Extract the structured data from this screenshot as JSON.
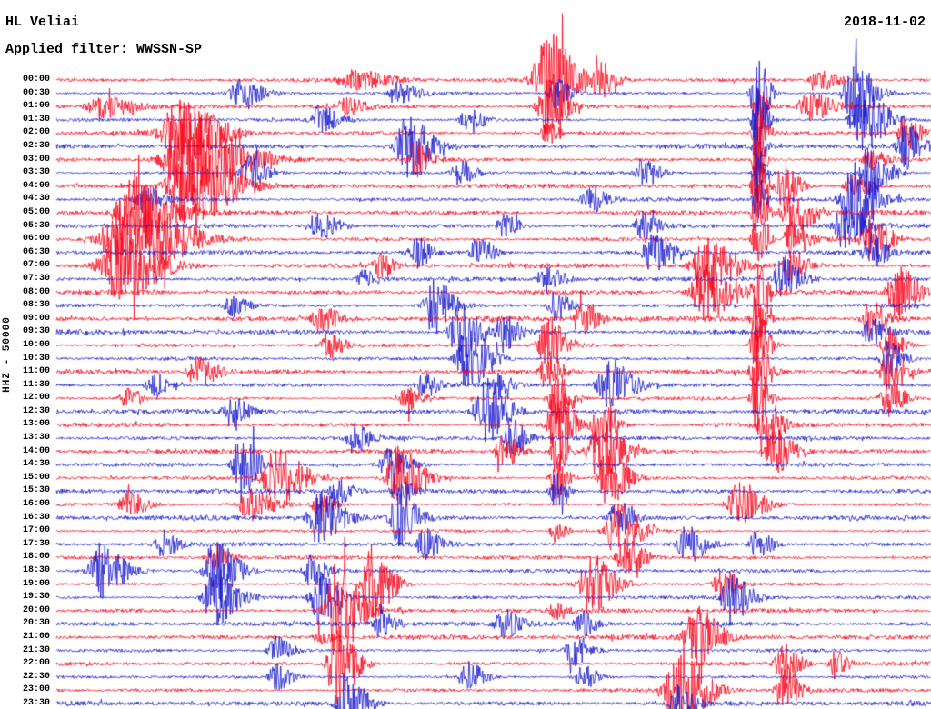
{
  "header": {
    "station": "HL Veliai",
    "date": "2018-11-02",
    "filter_label": "Applied filter: WWSSN-SP"
  },
  "axis": {
    "left_label": "HHZ - 50000"
  },
  "chart_data": {
    "type": "line",
    "title": "Helicorder seismogram, station HL Veliai, 2018-11-02",
    "station": "HL Veliai",
    "channel": "HHZ",
    "gain": 50000,
    "date": "2018-11-02",
    "filter": "WWSSN-SP",
    "minutes_per_row": 30,
    "legend": "none",
    "grid": "off",
    "trace_colors": {
      "red": "#f80016",
      "blue": "#1414cd"
    },
    "burst_format": "[position_fraction_of_row, peak_amplitude_px, envelope_width_px]",
    "rows": [
      {
        "label": "00:00",
        "color": "red",
        "bursts": [
          [
            0.34,
            10,
            18
          ],
          [
            0.56,
            55,
            14
          ],
          [
            0.62,
            20,
            8
          ],
          [
            0.87,
            12,
            10
          ]
        ]
      },
      {
        "label": "00:30",
        "color": "blue",
        "bursts": [
          [
            0.21,
            14,
            12
          ],
          [
            0.39,
            12,
            10
          ],
          [
            0.57,
            18,
            8
          ],
          [
            0.8,
            50,
            6
          ],
          [
            0.91,
            42,
            10
          ]
        ]
      },
      {
        "label": "01:00",
        "color": "red",
        "bursts": [
          [
            0.05,
            12,
            14
          ],
          [
            0.33,
            8,
            10
          ],
          [
            0.56,
            30,
            10
          ],
          [
            0.8,
            40,
            4
          ],
          [
            0.86,
            14,
            12
          ]
        ]
      },
      {
        "label": "01:30",
        "color": "blue",
        "bursts": [
          [
            0.3,
            16,
            10
          ],
          [
            0.47,
            14,
            8
          ],
          [
            0.8,
            48,
            5
          ],
          [
            0.92,
            38,
            12
          ]
        ]
      },
      {
        "label": "02:00",
        "color": "red",
        "bursts": [
          [
            0.14,
            35,
            20
          ],
          [
            0.56,
            12,
            6
          ],
          [
            0.8,
            44,
            5
          ],
          [
            0.97,
            18,
            8
          ]
        ]
      },
      {
        "label": "02:30",
        "color": "blue",
        "bursts": [
          [
            0.4,
            34,
            12
          ],
          [
            0.8,
            40,
            4
          ],
          [
            0.97,
            24,
            8
          ]
        ]
      },
      {
        "label": "03:00",
        "color": "red",
        "bursts": [
          [
            0.15,
            52,
            25
          ],
          [
            0.41,
            20,
            8
          ],
          [
            0.8,
            40,
            4
          ],
          [
            0.93,
            12,
            8
          ]
        ]
      },
      {
        "label": "03:30",
        "color": "blue",
        "bursts": [
          [
            0.22,
            18,
            10
          ],
          [
            0.46,
            14,
            8
          ],
          [
            0.67,
            16,
            8
          ],
          [
            0.8,
            34,
            4
          ],
          [
            0.93,
            30,
            10
          ]
        ]
      },
      {
        "label": "04:00",
        "color": "red",
        "bursts": [
          [
            0.15,
            44,
            22
          ],
          [
            0.8,
            40,
            5
          ],
          [
            0.83,
            24,
            8
          ],
          [
            0.91,
            15,
            8
          ]
        ]
      },
      {
        "label": "04:30",
        "color": "blue",
        "bursts": [
          [
            0.1,
            14,
            10
          ],
          [
            0.61,
            16,
            8
          ],
          [
            0.8,
            30,
            4
          ],
          [
            0.91,
            44,
            12
          ]
        ]
      },
      {
        "label": "05:00",
        "color": "red",
        "bursts": [
          [
            0.09,
            40,
            18
          ],
          [
            0.8,
            34,
            5
          ],
          [
            0.84,
            30,
            10
          ]
        ]
      },
      {
        "label": "05:30",
        "color": "blue",
        "bursts": [
          [
            0.3,
            14,
            10
          ],
          [
            0.51,
            12,
            8
          ],
          [
            0.67,
            14,
            8
          ],
          [
            0.9,
            24,
            10
          ]
        ]
      },
      {
        "label": "06:00",
        "color": "red",
        "bursts": [
          [
            0.08,
            52,
            25
          ],
          [
            0.8,
            30,
            5
          ],
          [
            0.84,
            20,
            8
          ],
          [
            0.93,
            24,
            10
          ]
        ]
      },
      {
        "label": "06:30",
        "color": "blue",
        "bursts": [
          [
            0.41,
            16,
            8
          ],
          [
            0.48,
            18,
            8
          ],
          [
            0.68,
            20,
            10
          ],
          [
            0.93,
            20,
            8
          ]
        ]
      },
      {
        "label": "07:00",
        "color": "red",
        "bursts": [
          [
            0.07,
            40,
            20
          ],
          [
            0.37,
            14,
            8
          ],
          [
            0.74,
            34,
            14
          ],
          [
            0.84,
            20,
            8
          ]
        ]
      },
      {
        "label": "07:30",
        "color": "blue",
        "bursts": [
          [
            0.35,
            10,
            8
          ],
          [
            0.56,
            16,
            8
          ],
          [
            0.83,
            24,
            10
          ]
        ]
      },
      {
        "label": "08:00",
        "color": "red",
        "bursts": [
          [
            0.74,
            30,
            14
          ],
          [
            0.8,
            30,
            5
          ],
          [
            0.96,
            30,
            10
          ]
        ]
      },
      {
        "label": "08:30",
        "color": "blue",
        "bursts": [
          [
            0.2,
            10,
            8
          ],
          [
            0.43,
            30,
            10
          ],
          [
            0.57,
            16,
            8
          ]
        ]
      },
      {
        "label": "09:00",
        "color": "red",
        "bursts": [
          [
            0.3,
            14,
            10
          ],
          [
            0.6,
            18,
            8
          ],
          [
            0.8,
            34,
            5
          ],
          [
            0.93,
            20,
            8
          ]
        ]
      },
      {
        "label": "09:30",
        "color": "blue",
        "bursts": [
          [
            0.46,
            34,
            10
          ],
          [
            0.51,
            20,
            8
          ],
          [
            0.93,
            14,
            8
          ]
        ]
      },
      {
        "label": "10:00",
        "color": "red",
        "bursts": [
          [
            0.31,
            14,
            8
          ],
          [
            0.56,
            30,
            10
          ],
          [
            0.8,
            44,
            6
          ],
          [
            0.95,
            18,
            8
          ]
        ]
      },
      {
        "label": "10:30",
        "color": "blue",
        "bursts": [
          [
            0.47,
            34,
            12
          ],
          [
            0.95,
            20,
            8
          ]
        ]
      },
      {
        "label": "11:00",
        "color": "red",
        "bursts": [
          [
            0.16,
            16,
            10
          ],
          [
            0.56,
            20,
            8
          ],
          [
            0.8,
            44,
            6
          ],
          [
            0.95,
            18,
            8
          ]
        ]
      },
      {
        "label": "11:30",
        "color": "blue",
        "bursts": [
          [
            0.11,
            14,
            8
          ],
          [
            0.42,
            12,
            8
          ],
          [
            0.5,
            16,
            8
          ],
          [
            0.63,
            30,
            12
          ]
        ]
      },
      {
        "label": "12:00",
        "color": "red",
        "bursts": [
          [
            0.08,
            12,
            8
          ],
          [
            0.4,
            14,
            8
          ],
          [
            0.57,
            34,
            8
          ],
          [
            0.8,
            40,
            6
          ],
          [
            0.95,
            20,
            8
          ]
        ]
      },
      {
        "label": "12:30",
        "color": "blue",
        "bursts": [
          [
            0.2,
            16,
            8
          ],
          [
            0.49,
            34,
            12
          ]
        ]
      },
      {
        "label": "13:00",
        "color": "red",
        "bursts": [
          [
            0.57,
            48,
            8
          ],
          [
            0.62,
            24,
            8
          ],
          [
            0.81,
            30,
            8
          ]
        ]
      },
      {
        "label": "13:30",
        "color": "blue",
        "bursts": [
          [
            0.34,
            16,
            8
          ],
          [
            0.52,
            20,
            8
          ]
        ]
      },
      {
        "label": "14:00",
        "color": "red",
        "bursts": [
          [
            0.51,
            20,
            8
          ],
          [
            0.57,
            30,
            6
          ],
          [
            0.62,
            34,
            12
          ],
          [
            0.82,
            24,
            10
          ]
        ]
      },
      {
        "label": "14:30",
        "color": "blue",
        "bursts": [
          [
            0.21,
            44,
            8
          ],
          [
            0.38,
            18,
            10
          ]
        ]
      },
      {
        "label": "15:00",
        "color": "red",
        "bursts": [
          [
            0.25,
            34,
            14
          ],
          [
            0.39,
            34,
            12
          ],
          [
            0.57,
            24,
            6
          ],
          [
            0.63,
            30,
            10
          ]
        ]
      },
      {
        "label": "15:30",
        "color": "blue",
        "bursts": [
          [
            0.32,
            16,
            8
          ],
          [
            0.39,
            14,
            8
          ],
          [
            0.57,
            20,
            6
          ]
        ]
      },
      {
        "label": "16:00",
        "color": "red",
        "bursts": [
          [
            0.08,
            14,
            10
          ],
          [
            0.22,
            18,
            12
          ],
          [
            0.3,
            12,
            8
          ],
          [
            0.78,
            24,
            12
          ]
        ]
      },
      {
        "label": "16:30",
        "color": "blue",
        "bursts": [
          [
            0.3,
            30,
            12
          ],
          [
            0.39,
            30,
            10
          ],
          [
            0.64,
            18,
            8
          ]
        ]
      },
      {
        "label": "17:00",
        "color": "red",
        "bursts": [
          [
            0.57,
            12,
            6
          ],
          [
            0.64,
            30,
            12
          ]
        ]
      },
      {
        "label": "17:30",
        "color": "blue",
        "bursts": [
          [
            0.12,
            14,
            8
          ],
          [
            0.42,
            16,
            8
          ],
          [
            0.72,
            20,
            10
          ],
          [
            0.8,
            16,
            8
          ]
        ]
      },
      {
        "label": "18:00",
        "color": "red",
        "bursts": [
          [
            0.18,
            14,
            8
          ],
          [
            0.65,
            20,
            10
          ]
        ]
      },
      {
        "label": "18:30",
        "color": "blue",
        "bursts": [
          [
            0.05,
            30,
            12
          ],
          [
            0.18,
            34,
            12
          ],
          [
            0.29,
            16,
            8
          ]
        ]
      },
      {
        "label": "19:00",
        "color": "red",
        "bursts": [
          [
            0.36,
            44,
            10
          ],
          [
            0.61,
            34,
            12
          ],
          [
            0.76,
            18,
            8
          ]
        ]
      },
      {
        "label": "19:30",
        "color": "blue",
        "bursts": [
          [
            0.18,
            34,
            12
          ],
          [
            0.3,
            30,
            10
          ],
          [
            0.77,
            30,
            10
          ]
        ]
      },
      {
        "label": "20:00",
        "color": "red",
        "bursts": [
          [
            0.32,
            52,
            12
          ],
          [
            0.57,
            10,
            6
          ]
        ]
      },
      {
        "label": "20:30",
        "color": "blue",
        "bursts": [
          [
            0.37,
            14,
            8
          ],
          [
            0.51,
            16,
            8
          ],
          [
            0.6,
            14,
            8
          ]
        ]
      },
      {
        "label": "21:00",
        "color": "red",
        "bursts": [
          [
            0.3,
            10,
            6
          ],
          [
            0.73,
            34,
            12
          ]
        ]
      },
      {
        "label": "21:30",
        "color": "blue",
        "bursts": [
          [
            0.25,
            16,
            8
          ],
          [
            0.59,
            18,
            8
          ]
        ]
      },
      {
        "label": "22:00",
        "color": "red",
        "bursts": [
          [
            0.32,
            44,
            10
          ],
          [
            0.83,
            24,
            8
          ],
          [
            0.89,
            15,
            6
          ]
        ]
      },
      {
        "label": "22:30",
        "color": "blue",
        "bursts": [
          [
            0.25,
            14,
            8
          ],
          [
            0.47,
            16,
            8
          ],
          [
            0.6,
            14,
            8
          ]
        ]
      },
      {
        "label": "23:00",
        "color": "red",
        "bursts": [
          [
            0.71,
            48,
            14
          ],
          [
            0.83,
            24,
            8
          ]
        ]
      },
      {
        "label": "23:30",
        "color": "blue",
        "bursts": [
          [
            0.33,
            34,
            10
          ],
          [
            0.71,
            20,
            8
          ]
        ]
      }
    ]
  }
}
